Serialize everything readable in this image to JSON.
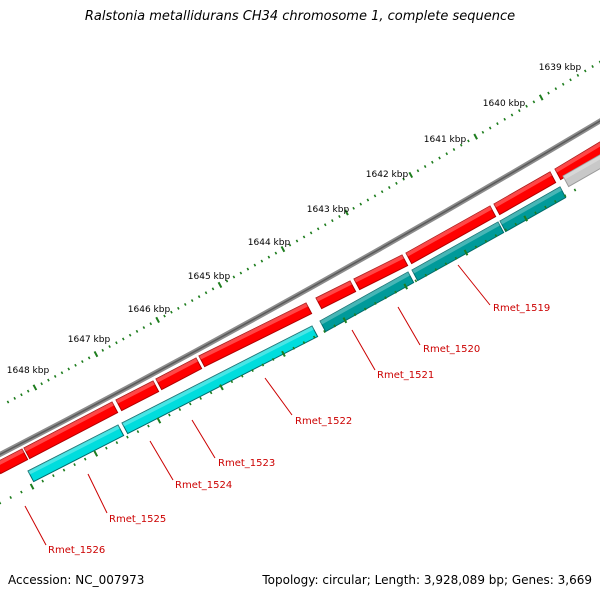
{
  "title": "Ralstonia metallidurans CH34 chromosome 1, complete sequence",
  "footer": {
    "accession": "Accession: NC_007973",
    "topology": "Topology: circular; Length: 3,928,089 bp; Genes: 3,669"
  },
  "colors": {
    "backbone": "#7a7a7a",
    "forward_gene": "#ff0000",
    "reverse_gene": "#00dddd",
    "reverse_gene_dark": "#009a9a",
    "other_gene": "#c8c8c8",
    "tick": "#1e7d1e",
    "label": "#cc0000"
  },
  "kbp_labels": [
    "1639 kbp",
    "1640 kbp",
    "1641 kbp",
    "1642 kbp",
    "1643 kbp",
    "1644 kbp",
    "1645 kbp",
    "1646 kbp",
    "1647 kbp",
    "1648 kbp"
  ],
  "gene_labels": [
    "Rmet_1519",
    "Rmet_1520",
    "Rmet_1521",
    "Rmet_1522",
    "Rmet_1523",
    "Rmet_1524",
    "Rmet_1525",
    "Rmet_1526"
  ]
}
